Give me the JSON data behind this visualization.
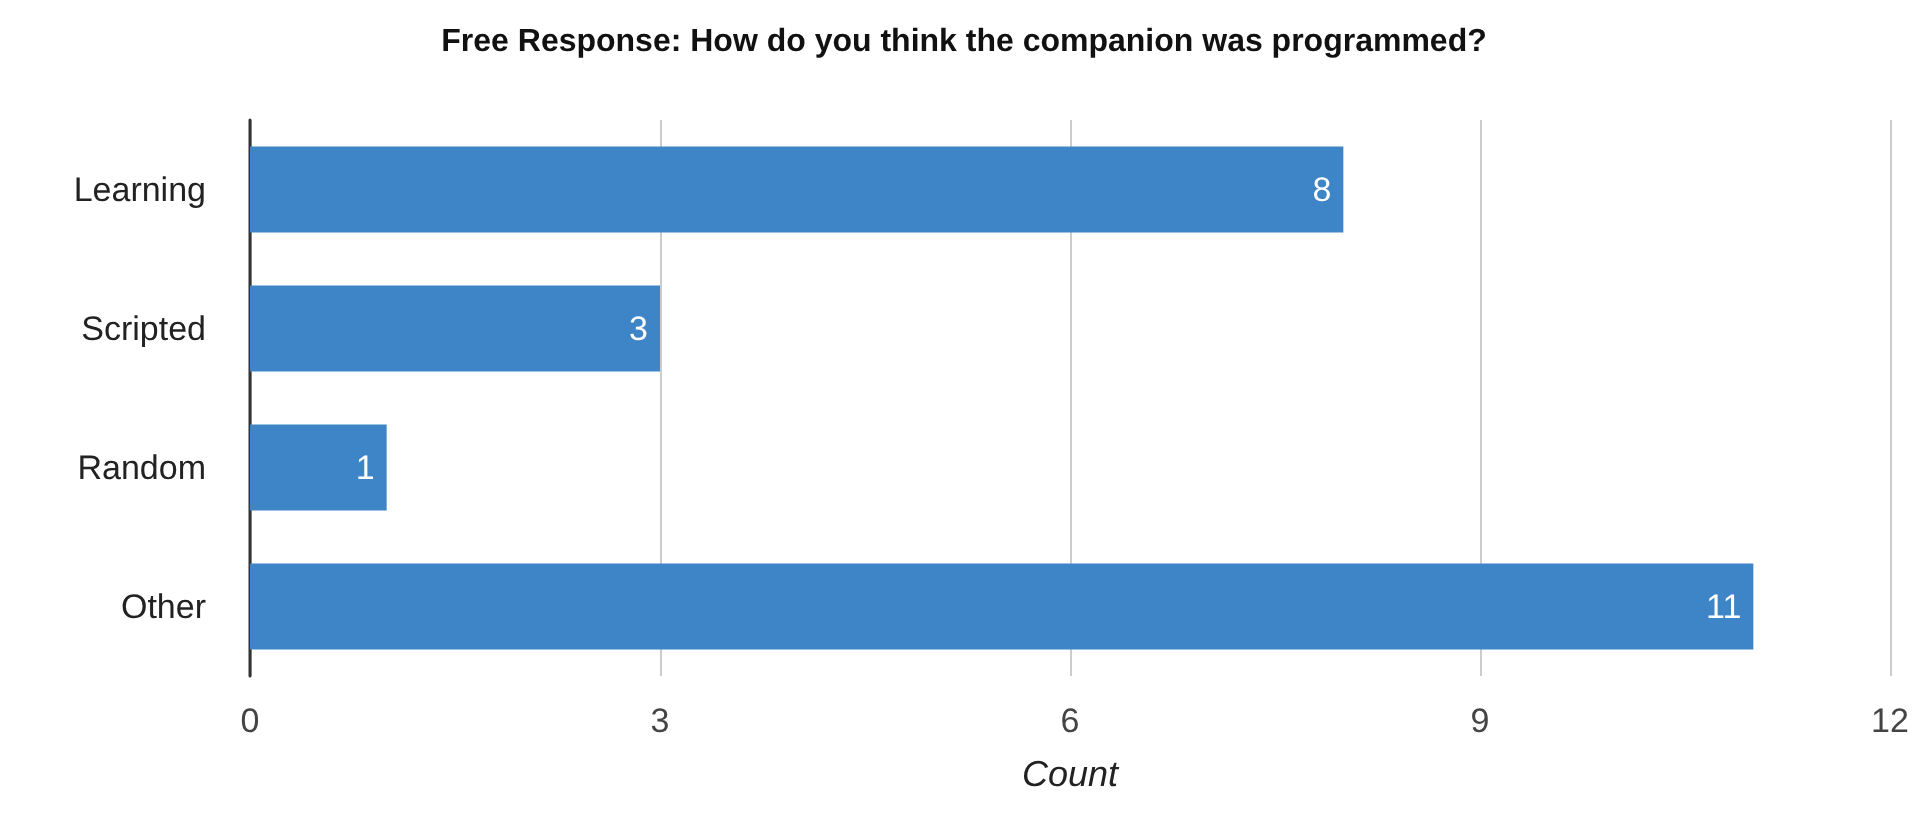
{
  "chart_data": {
    "type": "bar",
    "orientation": "horizontal",
    "title": "Free Response: How do you think the companion was programmed?",
    "xlabel": "Count",
    "categories": [
      "Learning",
      "Scripted",
      "Random",
      "Other"
    ],
    "values": [
      8,
      3,
      1,
      11
    ],
    "color": "#3d85c6",
    "xlim": [
      0,
      12
    ],
    "xticks": [
      0,
      3,
      6,
      9,
      12
    ],
    "grid": "x",
    "data_labels": true
  }
}
